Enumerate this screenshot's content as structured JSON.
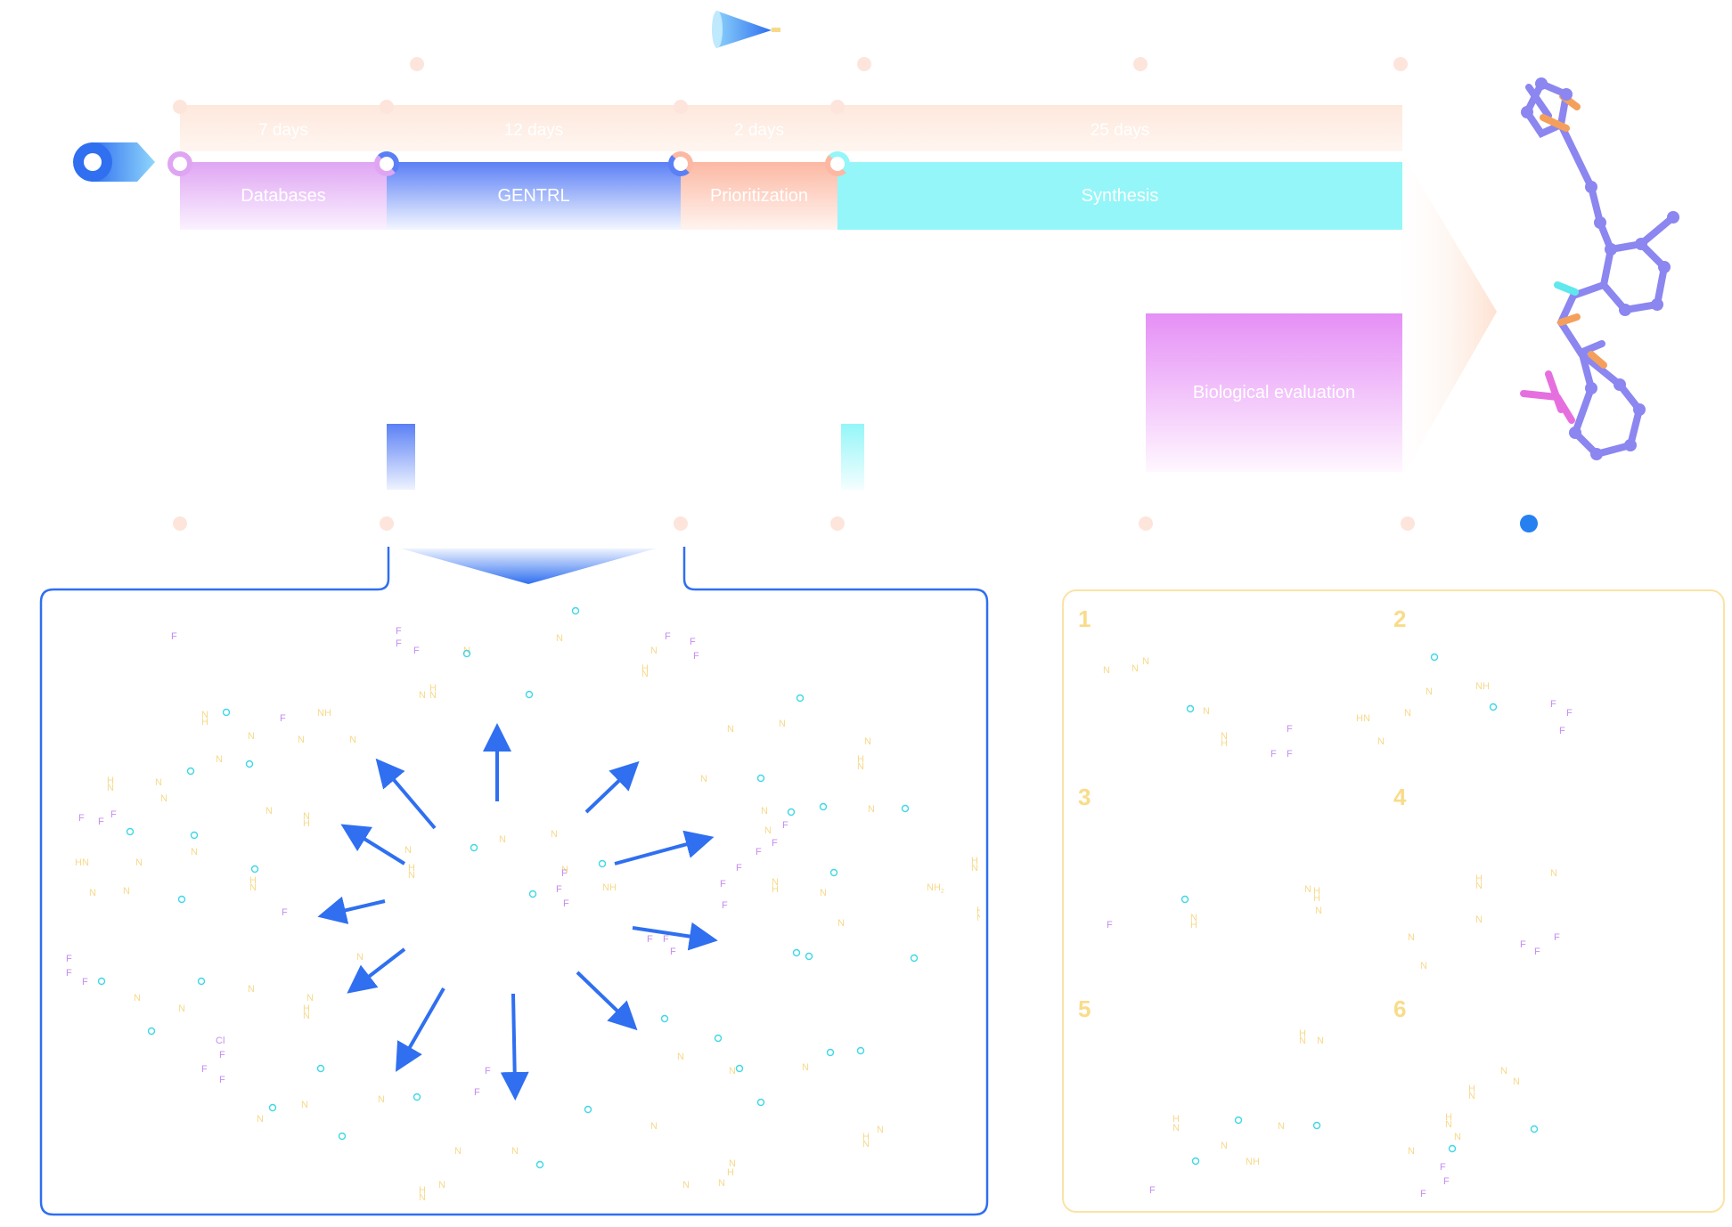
{
  "timeline": {
    "stages": [
      {
        "label": "Databases",
        "days": "7 days",
        "color": "#dfa5f3"
      },
      {
        "label": "GENTRL",
        "days": "12 days",
        "color": "#5b80f5"
      },
      {
        "label": "Prioritization",
        "days": "2 days",
        "color": "#fcb8a3"
      },
      {
        "label": "Synthesis",
        "days": "25 days",
        "color": "#94f6f8"
      }
    ],
    "evaluation_label": "Biological evaluation",
    "evaluation_color": "#e58ff6",
    "arrow_color": "#fde6d8"
  },
  "panels": {
    "numbers": [
      "1",
      "2",
      "3",
      "4",
      "5",
      "6"
    ]
  },
  "colors": {
    "blue": "#2f6ff0",
    "yellow": "#f7d98a",
    "purple": "#c58df0",
    "cyan": "#3fd7e8",
    "peach": "#fde5dc"
  },
  "icons": [
    "cone-icon",
    "start-marker-icon",
    "molecule-structure-icon"
  ]
}
